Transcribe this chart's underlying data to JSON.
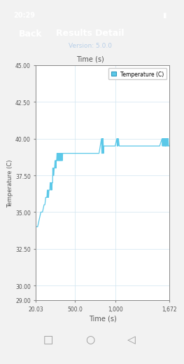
{
  "title": "Results Detail",
  "subtitle": "Version: 5.0.0",
  "top_xlabel": "Time (s)",
  "xlabel": "Time (s)",
  "ylabel": "Temperature (C)",
  "legend_label": "Temperature (C)",
  "legend_color": "#5bc8e8",
  "line_color": "#5bc8e8",
  "chart_bg": "#ffffff",
  "fig_bg": "#f2f2f2",
  "header_bg": "#2b5e8e",
  "statusbar_bg": "#1a3a5c",
  "navbar_bg": "#eeeeee",
  "xlim": [
    20.03,
    1672
  ],
  "ylim": [
    29.0,
    45.0
  ],
  "xticks": [
    20.03,
    500.0,
    1000,
    1672
  ],
  "xtick_labels": [
    "20.03",
    "500.0",
    "1,000",
    "1,672"
  ],
  "yticks": [
    29.0,
    30.0,
    32.5,
    35.0,
    37.5,
    40.0,
    42.5,
    45.0
  ],
  "ytick_labels": [
    "29.00",
    "30.00",
    "32.50",
    "35.00",
    "37.50",
    "40.00",
    "42.50",
    "45.00"
  ],
  "time_series": [
    20.03,
    40,
    60,
    80,
    100,
    120,
    130,
    140,
    150,
    155,
    160,
    165,
    170,
    175,
    180,
    190,
    195,
    200,
    205,
    210,
    215,
    220,
    225,
    228,
    230,
    232,
    235,
    240,
    245,
    250,
    255,
    258,
    260,
    263,
    265,
    268,
    270,
    275,
    280,
    285,
    290,
    295,
    300,
    305,
    310,
    315,
    320,
    325,
    330,
    335,
    340,
    345,
    350,
    360,
    370,
    380,
    390,
    400,
    420,
    440,
    460,
    480,
    500,
    550,
    600,
    650,
    700,
    750,
    800,
    830,
    835,
    840,
    845,
    850,
    855,
    860,
    870,
    880,
    900,
    950,
    1000,
    1020,
    1025,
    1030,
    1035,
    1040,
    1050,
    1100,
    1150,
    1200,
    1250,
    1300,
    1350,
    1400,
    1450,
    1500,
    1550,
    1580,
    1585,
    1590,
    1595,
    1600,
    1605,
    1610,
    1615,
    1618,
    1622,
    1625,
    1630,
    1635,
    1640,
    1645,
    1650,
    1655,
    1660,
    1665,
    1672
  ],
  "temp_series": [
    34.0,
    34.0,
    34.5,
    35.0,
    35.0,
    35.5,
    35.5,
    36.0,
    36.0,
    36.0,
    36.5,
    36.0,
    36.5,
    36.0,
    36.5,
    36.5,
    37.0,
    37.0,
    36.5,
    37.0,
    36.5,
    37.0,
    37.0,
    38.0,
    37.5,
    38.0,
    37.5,
    37.5,
    38.0,
    38.0,
    38.5,
    38.0,
    38.5,
    38.0,
    38.5,
    38.0,
    38.5,
    38.5,
    39.0,
    38.5,
    39.0,
    38.5,
    39.0,
    38.5,
    39.0,
    38.5,
    39.0,
    38.5,
    39.0,
    38.5,
    39.0,
    38.5,
    39.0,
    39.0,
    39.0,
    39.0,
    39.0,
    39.0,
    39.0,
    39.0,
    39.0,
    39.0,
    39.0,
    39.0,
    39.0,
    39.0,
    39.0,
    39.0,
    39.0,
    40.0,
    39.0,
    40.0,
    39.0,
    40.0,
    39.0,
    39.5,
    39.5,
    39.5,
    39.5,
    39.5,
    39.5,
    40.0,
    39.5,
    40.0,
    39.5,
    40.0,
    39.5,
    39.5,
    39.5,
    39.5,
    39.5,
    39.5,
    39.5,
    39.5,
    39.5,
    39.5,
    39.5,
    40.0,
    39.5,
    40.0,
    39.5,
    40.0,
    39.5,
    40.0,
    39.5,
    40.0,
    39.5,
    40.0,
    39.5,
    40.0,
    39.5,
    40.0,
    39.5,
    40.0,
    39.5,
    39.5,
    39.5
  ]
}
